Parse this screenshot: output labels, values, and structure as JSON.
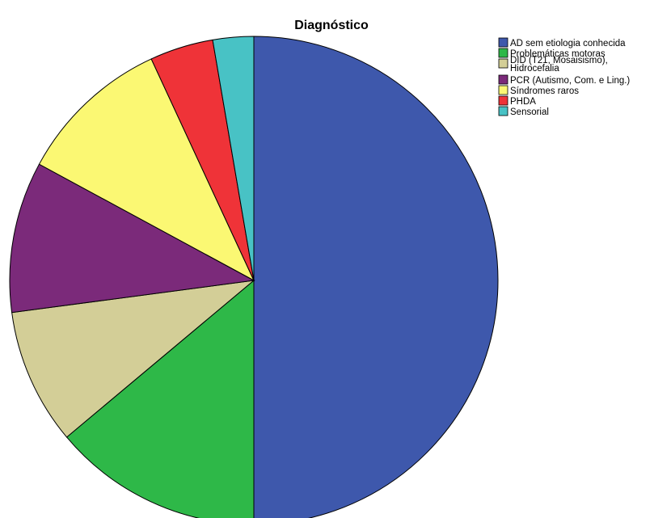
{
  "chart_data": {
    "type": "pie",
    "title": "Diagnóstico",
    "start": "top",
    "direction": "clockwise",
    "legend_position": "top-right",
    "categories": [
      "AD sem etiologia conhecida",
      "Problemáticas motoras",
      "DID (T21, Mosaisismo), Hidrocefalia",
      "PCR (Autismo, Com. e Ling.)",
      "Síndromes raros",
      "PHDA",
      "Sensorial"
    ],
    "values": [
      50.0,
      13.9,
      9.0,
      10.0,
      10.2,
      4.2,
      2.7
    ],
    "colors": [
      "#3e58ac",
      "#2eb848",
      "#d3ce97",
      "#7b2a7a",
      "#fbf873",
      "#ef3338",
      "#48c2c5"
    ]
  }
}
